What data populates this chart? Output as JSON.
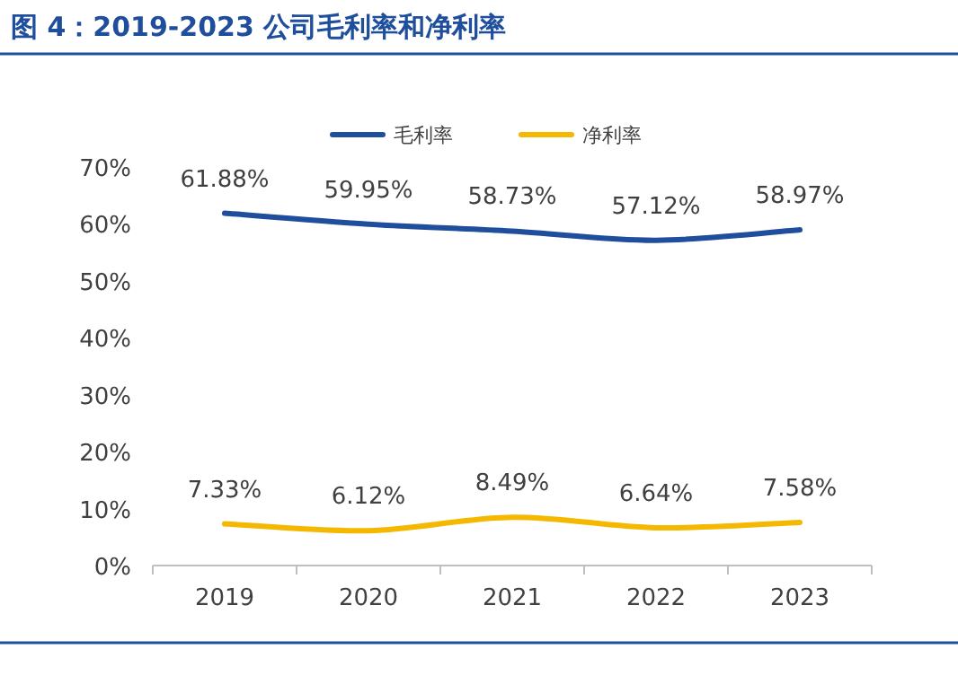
{
  "chart_data": {
    "type": "line",
    "title": "图 4：2019-2023 公司毛利率和净利率",
    "categories": [
      "2019",
      "2020",
      "2021",
      "2022",
      "2023"
    ],
    "series": [
      {
        "name": "毛利率",
        "color": "#1f4e9c",
        "values": [
          61.88,
          59.95,
          58.73,
          57.12,
          58.97
        ],
        "value_labels": [
          "61.88%",
          "59.95%",
          "58.73%",
          "57.12%",
          "58.97%"
        ]
      },
      {
        "name": "净利率",
        "color": "#f5b800",
        "values": [
          7.33,
          6.12,
          8.49,
          6.64,
          7.58
        ],
        "value_labels": [
          "7.33%",
          "6.12%",
          "8.49%",
          "6.64%",
          "7.58%"
        ]
      }
    ],
    "ylim": [
      0,
      70
    ],
    "yticks": [
      {
        "value": 0,
        "label": "0%"
      },
      {
        "value": 10,
        "label": "10%"
      },
      {
        "value": 20,
        "label": "20%"
      },
      {
        "value": 30,
        "label": "30%"
      },
      {
        "value": 40,
        "label": "40%"
      },
      {
        "value": 50,
        "label": "50%"
      },
      {
        "value": 60,
        "label": "60%"
      },
      {
        "value": 70,
        "label": "70%"
      }
    ],
    "legend": "top",
    "grid": false,
    "marker": "none",
    "line_style": "solid"
  }
}
